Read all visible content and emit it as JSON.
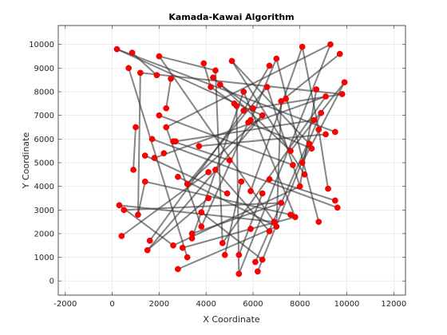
{
  "chart_data": {
    "type": "scatter",
    "title": "Kamada-Kawai Algorithm",
    "xlabel": "X Coordinate",
    "ylabel": "Y Coordinate",
    "xlim": [
      -2300,
      12500
    ],
    "ylim": [
      -600,
      10800
    ],
    "xticks": [
      -2000,
      0,
      2000,
      4000,
      6000,
      8000,
      10000,
      12000
    ],
    "yticks": [
      0,
      1000,
      2000,
      3000,
      4000,
      5000,
      6000,
      7000,
      8000,
      9000,
      10000
    ],
    "grid": true,
    "colors": {
      "node": "#ff0000",
      "edge": "#333333",
      "grid": "#dfdfdf",
      "axis": "#262626"
    },
    "nodes": [
      [
        200,
        9800
      ],
      [
        850,
        9650
      ],
      [
        700,
        9000
      ],
      [
        1200,
        8800
      ],
      [
        2000,
        9500
      ],
      [
        1900,
        8700
      ],
      [
        2500,
        8550
      ],
      [
        3900,
        9200
      ],
      [
        4400,
        8900
      ],
      [
        4300,
        8600
      ],
      [
        5100,
        9300
      ],
      [
        4200,
        8200
      ],
      [
        4600,
        8300
      ],
      [
        6700,
        9100
      ],
      [
        7000,
        9400
      ],
      [
        8100,
        9900
      ],
      [
        9300,
        10000
      ],
      [
        9700,
        9600
      ],
      [
        9900,
        8400
      ],
      [
        9800,
        7900
      ],
      [
        9100,
        7800
      ],
      [
        8700,
        8100
      ],
      [
        8900,
        7100
      ],
      [
        8600,
        6800
      ],
      [
        9100,
        6200
      ],
      [
        9500,
        6300
      ],
      [
        8800,
        6400
      ],
      [
        8400,
        5800
      ],
      [
        8500,
        5600
      ],
      [
        7600,
        5500
      ],
      [
        8100,
        5000
      ],
      [
        8200,
        4500
      ],
      [
        7700,
        4900
      ],
      [
        8000,
        4000
      ],
      [
        9200,
        3900
      ],
      [
        9500,
        3400
      ],
      [
        9600,
        3100
      ],
      [
        7800,
        2700
      ],
      [
        7600,
        2800
      ],
      [
        8800,
        2500
      ],
      [
        7200,
        3300
      ],
      [
        6900,
        2500
      ],
      [
        7000,
        2300
      ],
      [
        6700,
        2100
      ],
      [
        5900,
        2200
      ],
      [
        6400,
        900
      ],
      [
        6100,
        800
      ],
      [
        6200,
        400
      ],
      [
        5400,
        300
      ],
      [
        5400,
        1100
      ],
      [
        4800,
        1100
      ],
      [
        4700,
        1600
      ],
      [
        3400,
        1800
      ],
      [
        3400,
        2000
      ],
      [
        3800,
        2300
      ],
      [
        3200,
        1000
      ],
      [
        3000,
        1400
      ],
      [
        2800,
        500
      ],
      [
        2600,
        1500
      ],
      [
        1600,
        1700
      ],
      [
        1500,
        1300
      ],
      [
        400,
        1900
      ],
      [
        1100,
        2800
      ],
      [
        300,
        3200
      ],
      [
        500,
        3000
      ],
      [
        1400,
        4200
      ],
      [
        900,
        4700
      ],
      [
        1400,
        5300
      ],
      [
        1800,
        5200
      ],
      [
        2200,
        5400
      ],
      [
        1700,
        6000
      ],
      [
        2600,
        5900
      ],
      [
        2300,
        6500
      ],
      [
        2000,
        7000
      ],
      [
        2300,
        7300
      ],
      [
        1000,
        6500
      ],
      [
        2800,
        4400
      ],
      [
        3200,
        4100
      ],
      [
        3800,
        2900
      ],
      [
        4100,
        3500
      ],
      [
        4100,
        4600
      ],
      [
        4400,
        4700
      ],
      [
        5000,
        5100
      ],
      [
        4900,
        3700
      ],
      [
        5500,
        4200
      ],
      [
        5900,
        3800
      ],
      [
        6400,
        3700
      ],
      [
        6700,
        4300
      ],
      [
        3700,
        5700
      ],
      [
        2700,
        5900
      ],
      [
        5200,
        7500
      ],
      [
        5300,
        7400
      ],
      [
        5600,
        7200
      ],
      [
        5800,
        6700
      ],
      [
        5900,
        6800
      ],
      [
        6000,
        7300
      ],
      [
        6400,
        7000
      ],
      [
        6600,
        8200
      ],
      [
        5600,
        8000
      ],
      [
        7200,
        7600
      ],
      [
        7400,
        7700
      ]
    ],
    "edges": [
      [
        0,
        96
      ],
      [
        1,
        5
      ],
      [
        2,
        55
      ],
      [
        3,
        19
      ],
      [
        4,
        8
      ],
      [
        6,
        74
      ],
      [
        7,
        11
      ],
      [
        9,
        29
      ],
      [
        10,
        27
      ],
      [
        12,
        95
      ],
      [
        14,
        94
      ],
      [
        15,
        85
      ],
      [
        16,
        72
      ],
      [
        17,
        99
      ],
      [
        18,
        30
      ],
      [
        20,
        68
      ],
      [
        22,
        46
      ],
      [
        23,
        89
      ],
      [
        24,
        88
      ],
      [
        25,
        0
      ],
      [
        26,
        34
      ],
      [
        28,
        93
      ],
      [
        31,
        10
      ],
      [
        33,
        58
      ],
      [
        35,
        87
      ],
      [
        36,
        70
      ],
      [
        37,
        44
      ],
      [
        39,
        14
      ],
      [
        40,
        53
      ],
      [
        41,
        4
      ],
      [
        42,
        76
      ],
      [
        45,
        78
      ],
      [
        47,
        27
      ],
      [
        48,
        91
      ],
      [
        49,
        86
      ],
      [
        50,
        84
      ],
      [
        51,
        8
      ],
      [
        54,
        72
      ],
      [
        56,
        44
      ],
      [
        57,
        42
      ],
      [
        59,
        92
      ],
      [
        60,
        79
      ],
      [
        62,
        65
      ],
      [
        63,
        41
      ],
      [
        64,
        40
      ],
      [
        66,
        75
      ],
      [
        67,
        83
      ],
      [
        71,
        82
      ],
      [
        73,
        32
      ],
      [
        77,
        97
      ],
      [
        80,
        61
      ],
      [
        81,
        43
      ],
      [
        90,
        11
      ],
      [
        93,
        54
      ],
      [
        95,
        19
      ],
      [
        96,
        77
      ],
      [
        97,
        33
      ],
      [
        98,
        37
      ],
      [
        99,
        42
      ],
      [
        13,
        92
      ],
      [
        15,
        26
      ],
      [
        3,
        62
      ],
      [
        18,
        29
      ],
      [
        38,
        65
      ],
      [
        98,
        52
      ],
      [
        96,
        60
      ],
      [
        16,
        48
      ],
      [
        20,
        51
      ],
      [
        63,
        58
      ],
      [
        21,
        33
      ]
    ]
  }
}
